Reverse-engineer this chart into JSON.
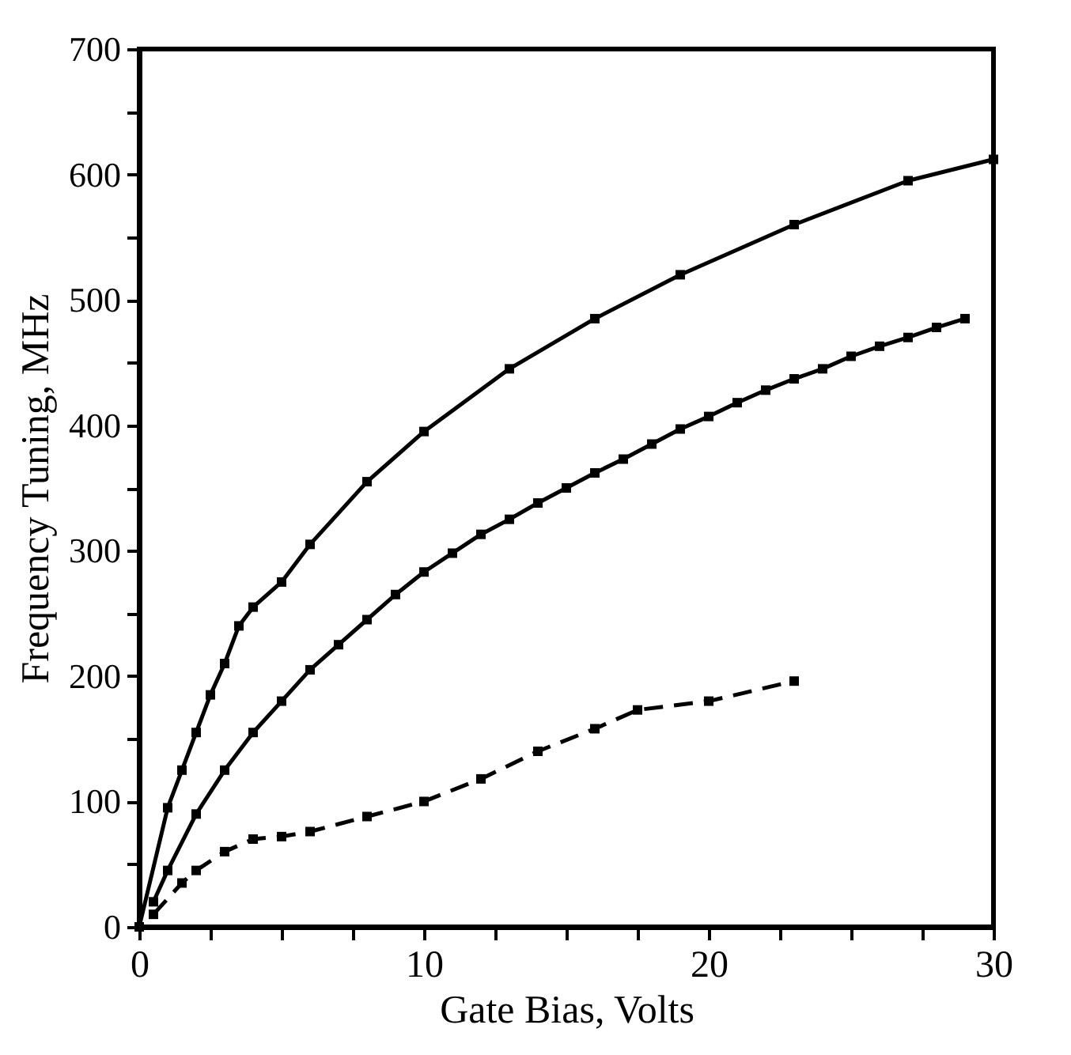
{
  "chart_data": {
    "type": "line",
    "xlabel": "Gate Bias, Volts",
    "ylabel": "Frequency Tuning, MHz",
    "xlim": [
      0,
      30
    ],
    "ylim": [
      0,
      700
    ],
    "xticks": [
      0,
      {
        "value": 2.5,
        "label": null
      },
      {
        "value": 5,
        "label": null
      },
      {
        "value": 7.5,
        "label": null
      },
      10,
      {
        "value": 12.5,
        "label": null
      },
      {
        "value": 15,
        "label": null
      },
      {
        "value": 17.5,
        "label": null
      },
      20,
      {
        "value": 22.5,
        "label": null
      },
      {
        "value": 25,
        "label": null
      },
      {
        "value": 27.5,
        "label": null
      },
      30
    ],
    "yticks": [
      0,
      {
        "value": 50,
        "label": null
      },
      100,
      {
        "value": 150,
        "label": null
      },
      200,
      {
        "value": 250,
        "label": null
      },
      300,
      {
        "value": 350,
        "label": null
      },
      400,
      {
        "value": 450,
        "label": null
      },
      500,
      {
        "value": 550,
        "label": null
      },
      600,
      {
        "value": 650,
        "label": null
      },
      700
    ],
    "grid": false,
    "marker": "square",
    "series": [
      {
        "color": "#000000",
        "line_style": "solid",
        "x": [
          0,
          1,
          1.5,
          2,
          2.5,
          3,
          3.5,
          4,
          5,
          6,
          8,
          10,
          13,
          16,
          19,
          23,
          27,
          30
        ],
        "values": [
          0,
          95,
          125,
          155,
          185,
          210,
          240,
          255,
          275,
          305,
          355,
          395,
          445,
          485,
          520,
          560,
          595,
          612
        ]
      },
      {
        "color": "#000000",
        "line_style": "solid",
        "x": [
          0.5,
          1,
          2,
          3,
          4,
          5,
          6,
          7,
          8,
          9,
          10,
          11,
          12,
          13,
          14,
          15,
          16,
          17,
          18,
          19,
          20,
          21,
          22,
          23,
          24,
          25,
          26,
          27,
          28,
          29
        ],
        "values": [
          20,
          45,
          90,
          125,
          155,
          180,
          205,
          225,
          245,
          265,
          283,
          298,
          313,
          325,
          338,
          350,
          362,
          373,
          385,
          397,
          407,
          418,
          428,
          437,
          445,
          455,
          463,
          470,
          478,
          485
        ]
      },
      {
        "color": "#000000",
        "line_style": "dashed",
        "x": [
          0.5,
          1.5,
          2,
          3,
          4,
          5,
          6,
          8,
          10,
          12,
          14,
          16,
          17.5,
          20,
          23
        ],
        "values": [
          10,
          35,
          45,
          60,
          70,
          72,
          76,
          88,
          100,
          118,
          140,
          158,
          173,
          180,
          196
        ]
      }
    ]
  }
}
